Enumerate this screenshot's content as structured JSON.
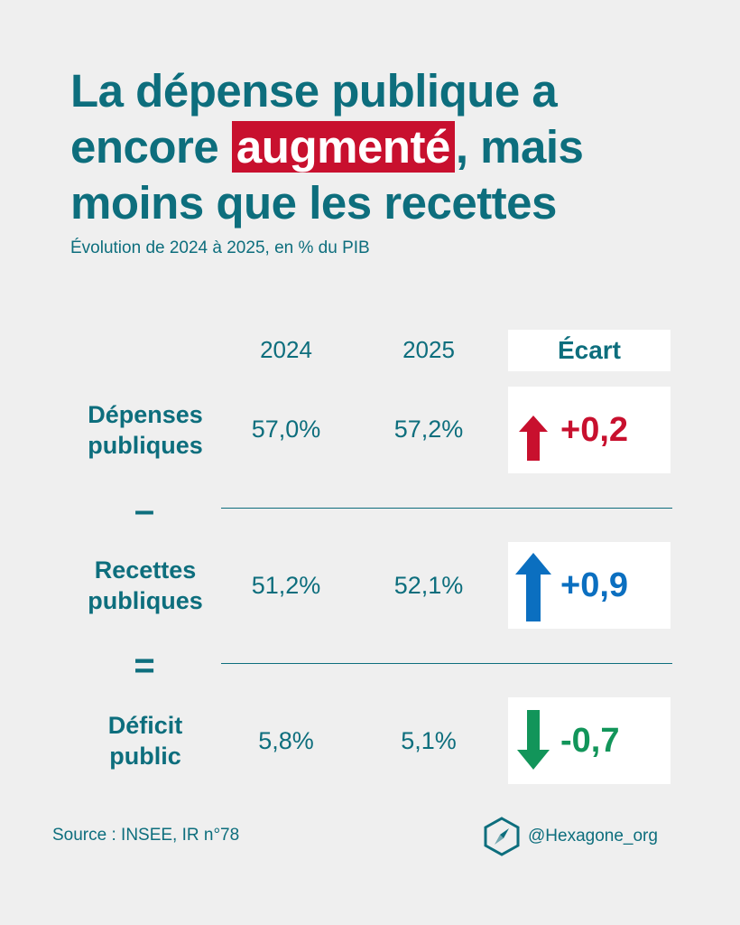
{
  "header": {
    "title_before": "La dépense publique a encore",
    "title_highlight": "augmenté",
    "title_after": ", mais moins que les recettes",
    "subtitle": "Évolution de 2024 à 2025, en % du PIB"
  },
  "columns": {
    "y2024": "2024",
    "y2025": "2025",
    "ecart": "Écart"
  },
  "operators": {
    "minus": "–",
    "equals": "="
  },
  "colors": {
    "teal": "#0d6e7d",
    "red": "#c8102e",
    "blue": "#0b6fc0",
    "green": "#12955a"
  },
  "chart_data": {
    "type": "table",
    "title": "La dépense publique a encore augmenté, mais moins que les recettes",
    "subtitle": "Évolution de 2024 à 2025, en % du PIB",
    "columns": [
      "2024",
      "2025",
      "Écart"
    ],
    "rows": [
      {
        "label_line1": "Dépenses",
        "label_line2": "publiques",
        "v2024": "57,0%",
        "v2025": "57,2%",
        "ecart": "+0,2",
        "ecart_value": 0.2,
        "direction": "up",
        "color": "#c8102e"
      },
      {
        "label_line1": "Recettes",
        "label_line2": "publiques",
        "v2024": "51,2%",
        "v2025": "52,1%",
        "ecart": "+0,9",
        "ecart_value": 0.9,
        "direction": "up",
        "color": "#0b6fc0"
      },
      {
        "label_line1": "Déficit",
        "label_line2": "public",
        "v2024": "5,8%",
        "v2025": "5,1%",
        "ecart": "-0,7",
        "ecart_value": -0.7,
        "direction": "down",
        "color": "#12955a"
      }
    ]
  },
  "footer": {
    "source": "Source : INSEE, IR n°78",
    "handle": "@Hexagone_org",
    "logo_icon": "hexagon-compass-icon"
  }
}
